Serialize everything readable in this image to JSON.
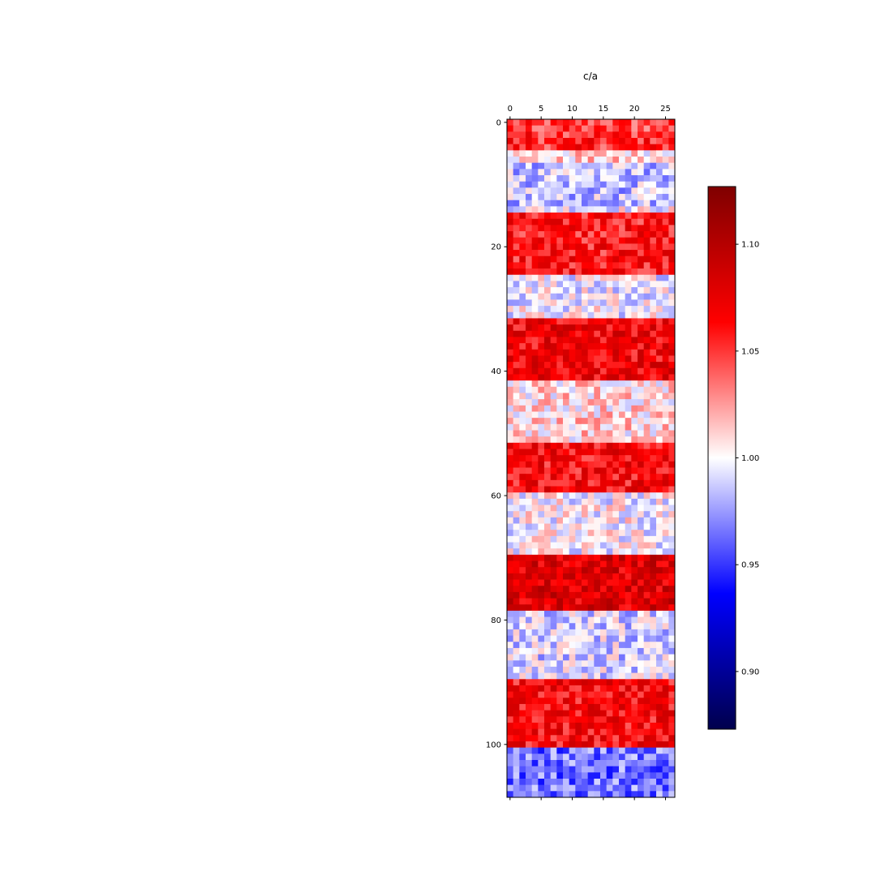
{
  "chart_data": {
    "type": "heatmap",
    "title": "c/a",
    "rows": 109,
    "cols": 27,
    "colormap": "seismic",
    "x_tick_labels": [
      "0",
      "5",
      "10",
      "15",
      "20",
      "25"
    ],
    "y_tick_labels": [
      "0",
      "20",
      "40",
      "60",
      "80",
      "100"
    ],
    "colorbar": {
      "vmin": 0.873,
      "vmax": 1.127,
      "tick_labels": [
        "0.90",
        "0.95",
        "1.00",
        "1.05",
        "1.10"
      ]
    },
    "row_profile": [
      {
        "rows": [
          0,
          1
        ],
        "mean": 1.045
      },
      {
        "rows": [
          2,
          4
        ],
        "mean": 1.055
      },
      {
        "rows": [
          5,
          6
        ],
        "mean": 1.01
      },
      {
        "rows": [
          7,
          13
        ],
        "mean": 0.985
      },
      {
        "rows": [
          14,
          14
        ],
        "mean": 1.0
      },
      {
        "rows": [
          15,
          24
        ],
        "mean": 1.06
      },
      {
        "rows": [
          25,
          31
        ],
        "mean": 0.998
      },
      {
        "rows": [
          32,
          41
        ],
        "mean": 1.07
      },
      {
        "rows": [
          42,
          51
        ],
        "mean": 1.01
      },
      {
        "rows": [
          52,
          59
        ],
        "mean": 1.065
      },
      {
        "rows": [
          60,
          69
        ],
        "mean": 1.0
      },
      {
        "rows": [
          70,
          78
        ],
        "mean": 1.08
      },
      {
        "rows": [
          79,
          89
        ],
        "mean": 0.99
      },
      {
        "rows": [
          90,
          100
        ],
        "mean": 1.065
      },
      {
        "rows": [
          101,
          108
        ],
        "mean": 0.965
      }
    ]
  }
}
